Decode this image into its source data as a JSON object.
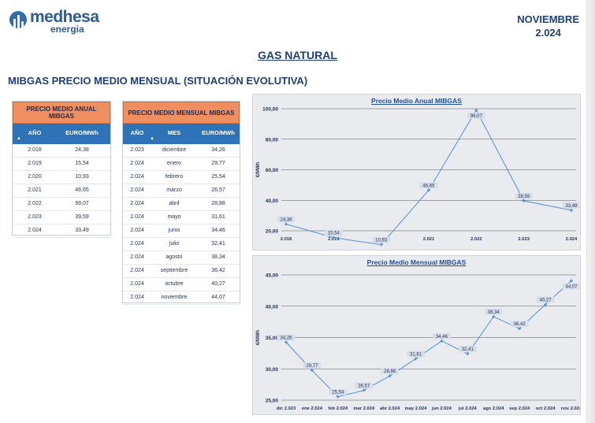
{
  "header": {
    "brand": "medhesa",
    "brand_sub": "energia",
    "month": "NOVIEMBRE",
    "year": "2.024"
  },
  "page_title": "GAS NATURAL",
  "section_title": "MIBGAS PRECIO MEDIO MENSUAL (SITUACIÓN EVOLUTIVA)",
  "annual_table": {
    "title": "PRECIO MEDIO ANUAL MIBGAS",
    "headers": [
      "AÑO",
      "EURO/MWh"
    ],
    "rows": [
      [
        "2.018",
        "24,38"
      ],
      [
        "2.019",
        "15,54"
      ],
      [
        "2.020",
        "10,93"
      ],
      [
        "2.021",
        "46,65"
      ],
      [
        "2.022",
        "99,07"
      ],
      [
        "2.023",
        "39,59"
      ],
      [
        "2.024",
        "33,49"
      ]
    ]
  },
  "monthly_table": {
    "title": "PRECIO MEDIO MENSUAL MIBGAS",
    "headers": [
      "AÑO",
      "MES",
      "EURO/MWh"
    ],
    "rows": [
      [
        "2.023",
        "diciembre",
        "34,26"
      ],
      [
        "2.024",
        "enero",
        "29,77"
      ],
      [
        "2.024",
        "febrero",
        "25,54"
      ],
      [
        "2.024",
        "marzo",
        "26,57"
      ],
      [
        "2.024",
        "abril",
        "28,88"
      ],
      [
        "2.024",
        "mayo",
        "31,61"
      ],
      [
        "2.024",
        "junio",
        "34,46"
      ],
      [
        "2.024",
        "julio",
        "32,41"
      ],
      [
        "2.024",
        "agosto",
        "38,34"
      ],
      [
        "2.024",
        "septiembre",
        "36,42"
      ],
      [
        "2.024",
        "octubre",
        "40,27"
      ],
      [
        "2.024",
        "noviembre",
        "44,07"
      ]
    ]
  },
  "chart_data": [
    {
      "type": "line",
      "title": "Precio Medio Anual MIBGAS",
      "ylabel": "€/MWh",
      "xlabel": "",
      "categories": [
        "2.018",
        "2.019",
        "2.020",
        "2.021",
        "2.022",
        "2.023",
        "2.024"
      ],
      "values": [
        24.38,
        15.54,
        10.93,
        46.65,
        99.07,
        39.59,
        33.49
      ],
      "value_labels": [
        "24,38",
        "15,54",
        "10,93",
        "46,65",
        "99,07",
        "39,59",
        "33,49"
      ],
      "ylim": [
        20,
        100
      ],
      "yticks": [
        20,
        40,
        60,
        80,
        100
      ],
      "ytick_labels": [
        "20,00",
        "40,00",
        "60,00",
        "80,00",
        "100,00"
      ],
      "grid": true,
      "line_color": "#4f8fdc"
    },
    {
      "type": "line",
      "title": "Precio Medio Mensual MIBGAS",
      "ylabel": "€/MWh",
      "xlabel": "",
      "categories": [
        "dic 2.023",
        "ene 2.024",
        "feb 2.024",
        "mar 2.024",
        "abr 2.024",
        "may 2.024",
        "jun 2.024",
        "jul 2.024",
        "ago 2.024",
        "sep 2.024",
        "oct 2.024",
        "nov 2.024"
      ],
      "values": [
        34.26,
        29.77,
        25.54,
        26.57,
        28.88,
        31.61,
        34.46,
        32.41,
        38.34,
        36.42,
        40.27,
        44.07
      ],
      "value_labels": [
        "34,26",
        "29,77",
        "25,54",
        "26,57",
        "28,88",
        "31,61",
        "34,46",
        "32,41",
        "38,34",
        "36,42",
        "40,27",
        "44,07"
      ],
      "ylim": [
        25,
        45
      ],
      "yticks": [
        25,
        30,
        35,
        40,
        45
      ],
      "ytick_labels": [
        "25,00",
        "30,00",
        "35,00",
        "40,00",
        "45,00"
      ],
      "grid": true,
      "line_color": "#4f8fdc"
    }
  ]
}
